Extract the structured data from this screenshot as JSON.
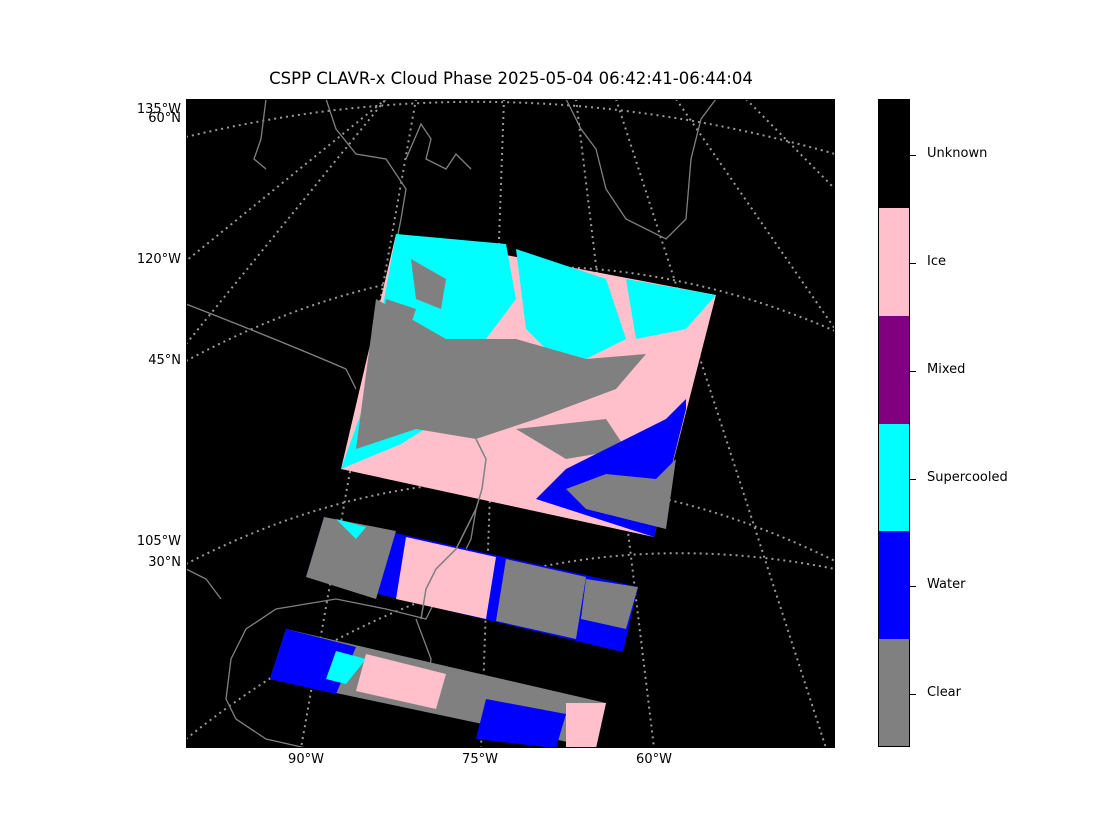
{
  "title": "CSPP CLAVR-x Cloud Phase 2025-05-04 06:42:41-06:44:04",
  "map": {
    "projection": "lambert-conformal",
    "background": "#000000",
    "gridline_color": "#9a9a9a",
    "coastline_color": "#808080",
    "left_labels": [
      "135°W",
      "60°N",
      "120°W",
      "45°N",
      "105°W",
      "30°N"
    ],
    "bottom_labels": [
      "90°W",
      "75°W",
      "60°W"
    ]
  },
  "colorbar": {
    "categories": [
      {
        "label": "Unknown",
        "color": "#000000"
      },
      {
        "label": "Ice",
        "color": "#ffc0cb"
      },
      {
        "label": "Mixed",
        "color": "#800080"
      },
      {
        "label": "Supercooled",
        "color": "#00ffff"
      },
      {
        "label": "Water",
        "color": "#0000ff"
      },
      {
        "label": "Clear",
        "color": "#808080"
      }
    ]
  }
}
